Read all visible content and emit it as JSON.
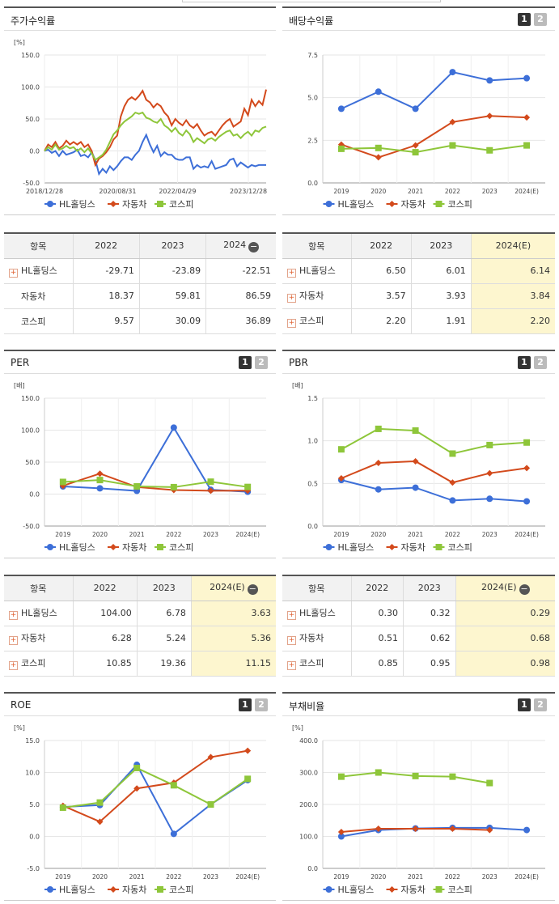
{
  "panels": {
    "stock": {
      "title": "주가수익률",
      "unit": "[%]"
    },
    "dividend": {
      "title": "배당수익률",
      "unit": ""
    },
    "per": {
      "title": "PER",
      "unit": "[배]"
    },
    "pbr": {
      "title": "PBR",
      "unit": "[배]"
    },
    "roe": {
      "title": "ROE",
      "unit": "[%]"
    },
    "debt": {
      "title": "부채비율",
      "unit": "[%]"
    }
  },
  "pager": {
    "p1": "1",
    "p2": "2"
  },
  "legend": {
    "hl": "HL홀딩스",
    "auto": "자동차",
    "kospi": "코스피"
  },
  "colors": {
    "hl": "#3d6fd8",
    "auto": "#d34a1c",
    "kospi": "#8ec63a"
  },
  "tables": {
    "stock": {
      "header": [
        "항목",
        "2022",
        "2023",
        "2024"
      ],
      "rows": [
        {
          "plus": true,
          "label": "HL홀딩스",
          "v": [
            "-29.71",
            "-23.89",
            "-22.51"
          ]
        },
        {
          "plus": false,
          "label": "자동차",
          "v": [
            "18.37",
            "59.81",
            "86.59"
          ]
        },
        {
          "plus": false,
          "label": "코스피",
          "v": [
            "9.57",
            "30.09",
            "36.89"
          ]
        }
      ]
    },
    "dividend": {
      "header": [
        "항목",
        "2022",
        "2023",
        "2024(E)"
      ],
      "rows": [
        {
          "plus": true,
          "label": "HL홀딩스",
          "v": [
            "6.50",
            "6.01",
            "6.14"
          ]
        },
        {
          "plus": true,
          "label": "자동차",
          "v": [
            "3.57",
            "3.93",
            "3.84"
          ]
        },
        {
          "plus": true,
          "label": "코스피",
          "v": [
            "2.20",
            "1.91",
            "2.20"
          ]
        }
      ]
    },
    "per": {
      "header": [
        "항목",
        "2022",
        "2023",
        "2024(E)"
      ],
      "rows": [
        {
          "plus": true,
          "label": "HL홀딩스",
          "v": [
            "104.00",
            "6.78",
            "3.63"
          ]
        },
        {
          "plus": true,
          "label": "자동차",
          "v": [
            "6.28",
            "5.24",
            "5.36"
          ]
        },
        {
          "plus": true,
          "label": "코스피",
          "v": [
            "10.85",
            "19.36",
            "11.15"
          ]
        }
      ]
    },
    "pbr": {
      "header": [
        "항목",
        "2022",
        "2023",
        "2024(E)"
      ],
      "rows": [
        {
          "plus": true,
          "label": "HL홀딩스",
          "v": [
            "0.30",
            "0.32",
            "0.29"
          ]
        },
        {
          "plus": true,
          "label": "자동차",
          "v": [
            "0.51",
            "0.62",
            "0.68"
          ]
        },
        {
          "plus": true,
          "label": "코스피",
          "v": [
            "0.85",
            "0.95",
            "0.98"
          ]
        }
      ]
    }
  },
  "chart_data": [
    {
      "id": "stock",
      "type": "line",
      "title": "주가수익률",
      "ylabel": "[%]",
      "ylim": [
        -50,
        150
      ],
      "yticks": [
        "150.0",
        "100.0",
        "50.0",
        "0.0",
        "-50.0"
      ],
      "xticks": [
        "2018/12/28",
        "2020/08/31",
        "2022/04/29",
        "2023/12/28"
      ],
      "series": [
        {
          "name": "HL홀딩스",
          "values": [
            0,
            2,
            -3,
            0,
            -8,
            0,
            -6,
            -4,
            -2,
            2,
            -8,
            -6,
            -10,
            -2,
            -14,
            -36,
            -28,
            -34,
            -24,
            -30,
            -24,
            -16,
            -10,
            -10,
            -14,
            -6,
            0,
            14,
            25,
            10,
            -2,
            8,
            -8,
            -2,
            -6,
            -6,
            -12,
            -14,
            -14,
            -10,
            -10,
            -28,
            -22,
            -26,
            -24,
            -26,
            -16,
            -28,
            -26,
            -24,
            -22,
            -14,
            -12,
            -24,
            -18,
            -22,
            -26,
            -22,
            -24,
            -22,
            -22,
            -22
          ]
        },
        {
          "name": "자동차",
          "values": [
            0,
            10,
            6,
            14,
            4,
            8,
            16,
            10,
            14,
            10,
            14,
            6,
            10,
            0,
            -22,
            -12,
            -8,
            -2,
            6,
            18,
            24,
            54,
            70,
            80,
            84,
            80,
            86,
            94,
            80,
            76,
            68,
            74,
            70,
            60,
            54,
            40,
            50,
            44,
            40,
            48,
            40,
            36,
            42,
            32,
            24,
            28,
            30,
            24,
            32,
            40,
            46,
            50,
            38,
            42,
            46,
            66,
            56,
            80,
            70,
            78,
            72,
            96
          ]
        },
        {
          "name": "코스피",
          "values": [
            0,
            6,
            2,
            10,
            2,
            4,
            8,
            4,
            6,
            0,
            4,
            -2,
            4,
            -4,
            -14,
            -10,
            -6,
            2,
            14,
            26,
            32,
            40,
            46,
            50,
            54,
            60,
            58,
            60,
            52,
            50,
            46,
            44,
            50,
            40,
            36,
            30,
            36,
            28,
            24,
            32,
            26,
            14,
            20,
            16,
            12,
            18,
            20,
            16,
            22,
            26,
            30,
            32,
            24,
            26,
            20,
            26,
            30,
            24,
            32,
            30,
            36,
            38
          ]
        }
      ]
    },
    {
      "id": "dividend",
      "type": "line",
      "title": "배당수익률",
      "ylabel": "",
      "ylim": [
        0,
        7.5
      ],
      "yticks": [
        "7.5",
        "5.0",
        "2.5",
        "0.0"
      ],
      "categories": [
        "2019",
        "2020",
        "2021",
        "2022",
        "2023",
        "2024(E)"
      ],
      "series": [
        {
          "name": "HL홀딩스",
          "values": [
            4.35,
            5.35,
            4.35,
            6.5,
            6.01,
            6.14
          ]
        },
        {
          "name": "자동차",
          "values": [
            2.25,
            1.5,
            2.2,
            3.57,
            3.93,
            3.84
          ]
        },
        {
          "name": "코스피",
          "values": [
            2.0,
            2.05,
            1.8,
            2.2,
            1.91,
            2.2
          ]
        }
      ]
    },
    {
      "id": "per",
      "type": "line",
      "title": "PER",
      "ylabel": "[배]",
      "ylim": [
        -50,
        150
      ],
      "yticks": [
        "150.0",
        "100.0",
        "50.0",
        "0.0",
        "-50.0"
      ],
      "categories": [
        "2019",
        "2020",
        "2021",
        "2022",
        "2023",
        "2024(E)"
      ],
      "series": [
        {
          "name": "HL홀딩스",
          "values": [
            12,
            9,
            5,
            104,
            6.78,
            3.63
          ]
        },
        {
          "name": "자동차",
          "values": [
            13,
            32,
            11,
            6.28,
            5.24,
            5.36
          ]
        },
        {
          "name": "코스피",
          "values": [
            19,
            22,
            12,
            10.85,
            19.36,
            11.15
          ]
        }
      ]
    },
    {
      "id": "pbr",
      "type": "line",
      "title": "PBR",
      "ylabel": "[배]",
      "ylim": [
        0,
        1.5
      ],
      "yticks": [
        "1.5",
        "1.0",
        "0.5",
        "0.0"
      ],
      "categories": [
        "2019",
        "2020",
        "2021",
        "2022",
        "2023",
        "2024(E)"
      ],
      "series": [
        {
          "name": "HL홀딩스",
          "values": [
            0.54,
            0.43,
            0.45,
            0.3,
            0.32,
            0.29
          ]
        },
        {
          "name": "자동차",
          "values": [
            0.56,
            0.74,
            0.76,
            0.51,
            0.62,
            0.68
          ]
        },
        {
          "name": "코스피",
          "values": [
            0.9,
            1.14,
            1.12,
            0.85,
            0.95,
            0.98
          ]
        }
      ]
    },
    {
      "id": "roe",
      "type": "line",
      "title": "ROE",
      "ylabel": "[%]",
      "ylim": [
        -5,
        15
      ],
      "yticks": [
        "15.0",
        "10.0",
        "5.0",
        "0.0",
        "-5.0"
      ],
      "categories": [
        "2019",
        "2020",
        "2021",
        "2022",
        "2023",
        "2024(E)"
      ],
      "series": [
        {
          "name": "HL홀딩스",
          "values": [
            4.6,
            4.9,
            11.2,
            0.4,
            5.0,
            8.8
          ]
        },
        {
          "name": "자동차",
          "values": [
            4.8,
            2.3,
            7.5,
            8.4,
            12.4,
            13.4
          ]
        },
        {
          "name": "코스피",
          "values": [
            4.5,
            5.3,
            10.7,
            8.0,
            5.0,
            9.0
          ]
        }
      ]
    },
    {
      "id": "debt",
      "type": "line",
      "title": "부채비율",
      "ylabel": "[%]",
      "ylim": [
        0,
        400
      ],
      "yticks": [
        "400.0",
        "300.0",
        "200.0",
        "100.0",
        "0.0"
      ],
      "categories": [
        "2019",
        "2020",
        "2021",
        "2022",
        "2023",
        "2024(E)"
      ],
      "series": [
        {
          "name": "HL홀딩스",
          "values": [
            100,
            120,
            125,
            127,
            127,
            120
          ]
        },
        {
          "name": "자동차",
          "values": [
            114,
            124,
            124,
            124,
            120,
            null
          ]
        },
        {
          "name": "코스피",
          "values": [
            287,
            300,
            289,
            287,
            267,
            null
          ]
        }
      ]
    }
  ]
}
